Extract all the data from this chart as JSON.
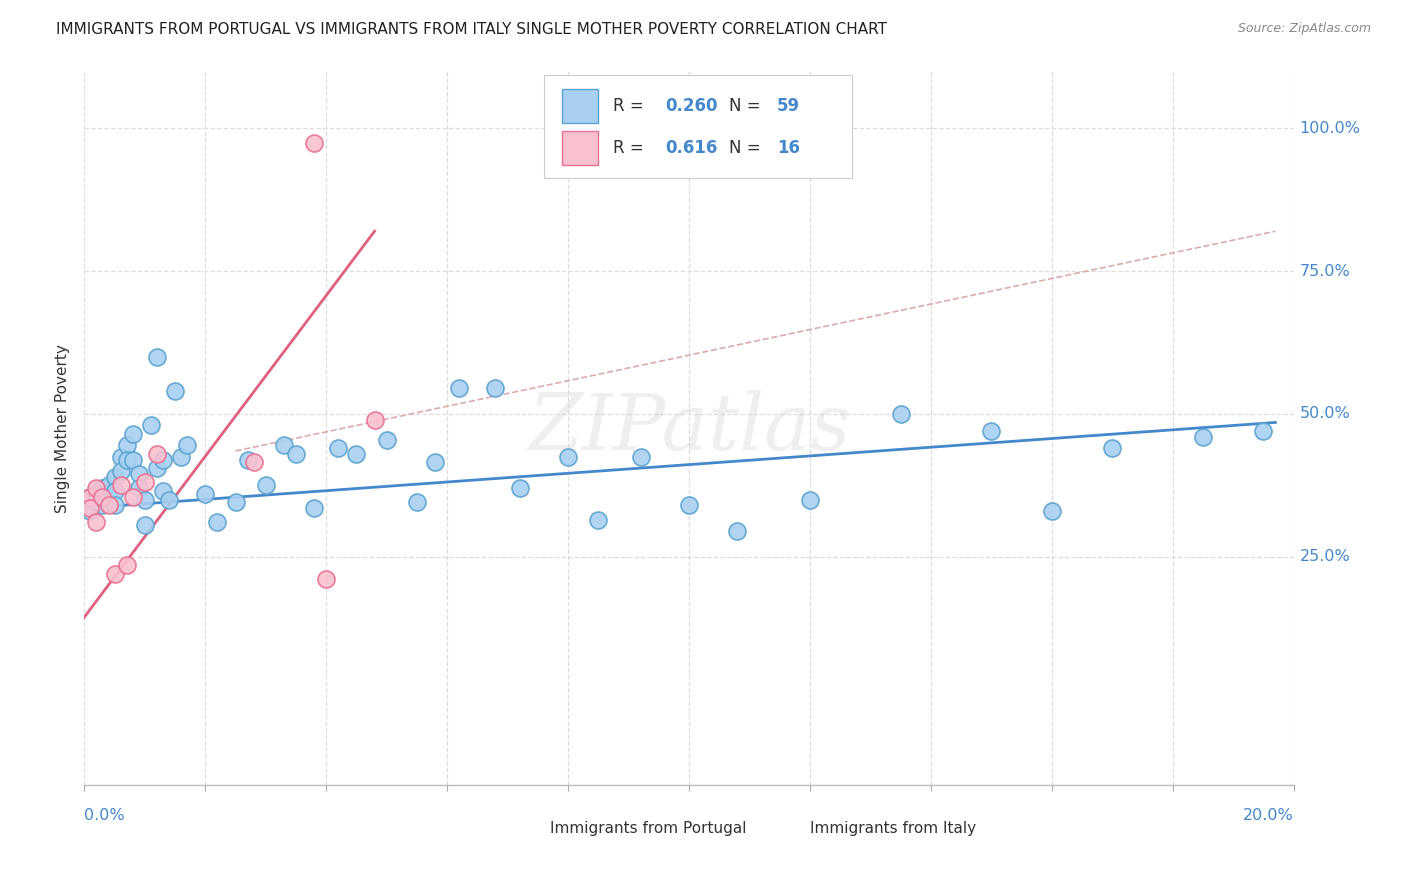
{
  "title": "IMMIGRANTS FROM PORTUGAL VS IMMIGRANTS FROM ITALY SINGLE MOTHER POVERTY CORRELATION CHART",
  "source": "Source: ZipAtlas.com",
  "ylabel": "Single Mother Poverty",
  "ytick_labels": [
    "100.0%",
    "75.0%",
    "50.0%",
    "25.0%"
  ],
  "ytick_values": [
    1.0,
    0.75,
    0.5,
    0.25
  ],
  "xlim": [
    0.0,
    0.2
  ],
  "ylim": [
    -0.15,
    1.1
  ],
  "legend_r_portugal": "0.260",
  "legend_n_portugal": "59",
  "legend_r_italy": "0.616",
  "legend_n_italy": "16",
  "color_portugal_fill": "#a8d0f0",
  "color_portugal_edge": "#5ba3d0",
  "color_italy_fill": "#f9c0d0",
  "color_italy_edge": "#e87090",
  "color_portugal_line": "#4488cc",
  "color_italy_line": "#e06080",
  "color_ref_line": "#ccaaaa",
  "watermark": "ZIPatlas",
  "watermark_color": "#d8d8d8",
  "portugal_x": [
    0.001,
    0.001,
    0.002,
    0.002,
    0.003,
    0.003,
    0.003,
    0.004,
    0.004,
    0.005,
    0.005,
    0.005,
    0.006,
    0.006,
    0.007,
    0.007,
    0.008,
    0.008,
    0.009,
    0.009,
    0.01,
    0.01,
    0.011,
    0.012,
    0.012,
    0.013,
    0.013,
    0.014,
    0.015,
    0.016,
    0.017,
    0.02,
    0.022,
    0.025,
    0.027,
    0.03,
    0.033,
    0.035,
    0.038,
    0.042,
    0.045,
    0.05,
    0.055,
    0.058,
    0.062,
    0.068,
    0.072,
    0.08,
    0.085,
    0.092,
    0.1,
    0.108,
    0.12,
    0.135,
    0.15,
    0.16,
    0.17,
    0.185,
    0.195
  ],
  "portugal_y": [
    0.355,
    0.33,
    0.36,
    0.345,
    0.37,
    0.355,
    0.34,
    0.375,
    0.355,
    0.39,
    0.365,
    0.34,
    0.425,
    0.4,
    0.445,
    0.42,
    0.465,
    0.42,
    0.395,
    0.37,
    0.35,
    0.305,
    0.48,
    0.6,
    0.405,
    0.42,
    0.365,
    0.35,
    0.54,
    0.425,
    0.445,
    0.36,
    0.31,
    0.345,
    0.42,
    0.375,
    0.445,
    0.43,
    0.335,
    0.44,
    0.43,
    0.455,
    0.345,
    0.415,
    0.545,
    0.545,
    0.37,
    0.425,
    0.315,
    0.425,
    0.34,
    0.295,
    0.35,
    0.5,
    0.47,
    0.33,
    0.44,
    0.46,
    0.47
  ],
  "italy_x": [
    0.001,
    0.001,
    0.002,
    0.002,
    0.003,
    0.004,
    0.005,
    0.006,
    0.007,
    0.008,
    0.01,
    0.012,
    0.028,
    0.038,
    0.04,
    0.048
  ],
  "italy_y": [
    0.355,
    0.335,
    0.37,
    0.31,
    0.355,
    0.34,
    0.22,
    0.375,
    0.235,
    0.355,
    0.38,
    0.43,
    0.415,
    0.975,
    0.21,
    0.49
  ],
  "italy_line_x0": -0.001,
  "italy_line_y0": 0.13,
  "italy_line_x1": 0.048,
  "italy_line_y1": 0.82,
  "portugal_line_x0": 0.0,
  "portugal_line_y0": 0.335,
  "portugal_line_x1": 0.197,
  "portugal_line_y1": 0.485,
  "ref_line_x0": 0.025,
  "ref_line_y0": 0.435,
  "ref_line_x1": 0.197,
  "ref_line_y1": 0.82
}
